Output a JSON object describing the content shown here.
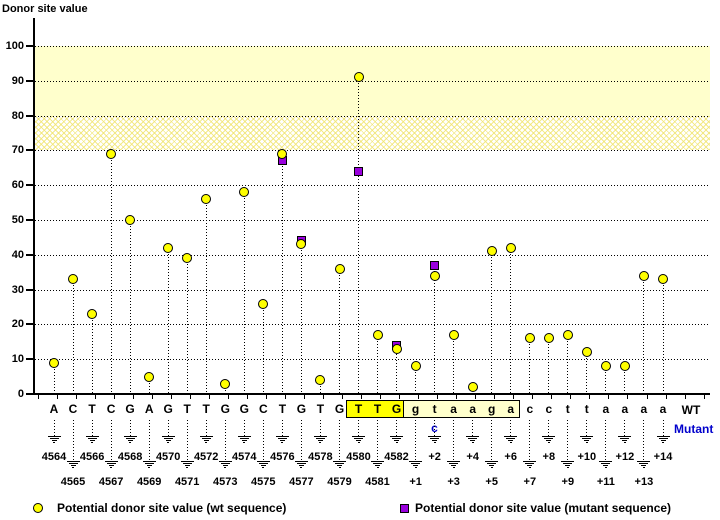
{
  "chart_data": {
    "type": "scatter",
    "title": "Donor site value",
    "ylabel": "Donor site value",
    "ylim": [
      0,
      100
    ],
    "y_ticks": [
      100,
      90,
      80,
      70,
      60,
      50,
      40,
      30,
      20,
      10,
      0
    ],
    "grid": "dotted-horizontal",
    "bands": [
      {
        "from": 80,
        "to": 100,
        "style": "solid",
        "color": "#ffffcc"
      },
      {
        "from": 70,
        "to": 80,
        "style": "crosshatch",
        "color": "#ffffcc"
      }
    ],
    "series_meta": {
      "wt": {
        "marker": "circle",
        "color": "#ffff00"
      },
      "mutant": {
        "marker": "square",
        "color": "#9900dd"
      }
    },
    "points": [
      {
        "base": "A",
        "pos": "4564",
        "wt": 9,
        "mutant": null
      },
      {
        "base": "C",
        "pos": "4565",
        "wt": 33,
        "mutant": null
      },
      {
        "base": "T",
        "pos": "4566",
        "wt": 23,
        "mutant": null
      },
      {
        "base": "C",
        "pos": "4567",
        "wt": 69,
        "mutant": null
      },
      {
        "base": "G",
        "pos": "4568",
        "wt": 50,
        "mutant": null
      },
      {
        "base": "A",
        "pos": "4569",
        "wt": 5,
        "mutant": null
      },
      {
        "base": "G",
        "pos": "4570",
        "wt": 42,
        "mutant": null
      },
      {
        "base": "T",
        "pos": "4571",
        "wt": 39,
        "mutant": null
      },
      {
        "base": "T",
        "pos": "4572",
        "wt": 56,
        "mutant": null
      },
      {
        "base": "G",
        "pos": "4573",
        "wt": 3,
        "mutant": null
      },
      {
        "base": "G",
        "pos": "4574",
        "wt": 58,
        "mutant": null
      },
      {
        "base": "C",
        "pos": "4575",
        "wt": 26,
        "mutant": null
      },
      {
        "base": "T",
        "pos": "4576",
        "wt": 69,
        "mutant": 67
      },
      {
        "base": "G",
        "pos": "4577",
        "wt": 43,
        "mutant": 44
      },
      {
        "base": "T",
        "pos": "4578",
        "wt": 4,
        "mutant": null
      },
      {
        "base": "G",
        "pos": "4579",
        "wt": 36,
        "mutant": null
      },
      {
        "base": "T",
        "pos": "4580",
        "wt": 91,
        "mutant": 64
      },
      {
        "base": "T",
        "pos": "4581",
        "wt": 17,
        "mutant": null
      },
      {
        "base": "G",
        "pos": "4582",
        "wt": 13,
        "mutant": 14
      },
      {
        "base": "g",
        "pos": "+1",
        "wt": 8,
        "mutant": null
      },
      {
        "base": "t",
        "pos": "+2",
        "wt": 34,
        "mutant": 37
      },
      {
        "base": "a",
        "pos": "+3",
        "wt": 17,
        "mutant": null
      },
      {
        "base": "a",
        "pos": "+4",
        "wt": 2,
        "mutant": null
      },
      {
        "base": "g",
        "pos": "+5",
        "wt": 41,
        "mutant": null
      },
      {
        "base": "a",
        "pos": "+6",
        "wt": 42,
        "mutant": null
      },
      {
        "base": "c",
        "pos": "+7",
        "wt": 16,
        "mutant": null
      },
      {
        "base": "c",
        "pos": "+8",
        "wt": 16,
        "mutant": null
      },
      {
        "base": "t",
        "pos": "+9",
        "wt": 17,
        "mutant": null
      },
      {
        "base": "t",
        "pos": "+10",
        "wt": 12,
        "mutant": null
      },
      {
        "base": "a",
        "pos": "+11",
        "wt": 8,
        "mutant": null
      },
      {
        "base": "a",
        "pos": "+12",
        "wt": 8,
        "mutant": null
      },
      {
        "base": "a",
        "pos": "+13",
        "wt": 34,
        "mutant": null
      },
      {
        "base": "a",
        "pos": "+14",
        "wt": 33,
        "mutant": null
      }
    ],
    "highlight_boxes": [
      {
        "from_index": 16,
        "to_index": 18,
        "color": "#ffff00",
        "meaning": "donor site exonic bases T T G"
      },
      {
        "from_index": 19,
        "to_index": 24,
        "color": "#ffffcc",
        "meaning": "donor site intronic bases g t a a g a"
      }
    ]
  },
  "sequence_row": {
    "wt_label": "WT",
    "mutant_label": "Mutant",
    "mutant_base": "c",
    "mutant_base_position": "+2",
    "mutant_color": "#0000cc"
  },
  "legend": {
    "wt_label": "Potential donor site value (wt sequence)",
    "mutant_label": "Potential donor site value (mutant sequence)",
    "wt_marker_color": "#ffff00",
    "mutant_marker_color": "#9900dd"
  }
}
